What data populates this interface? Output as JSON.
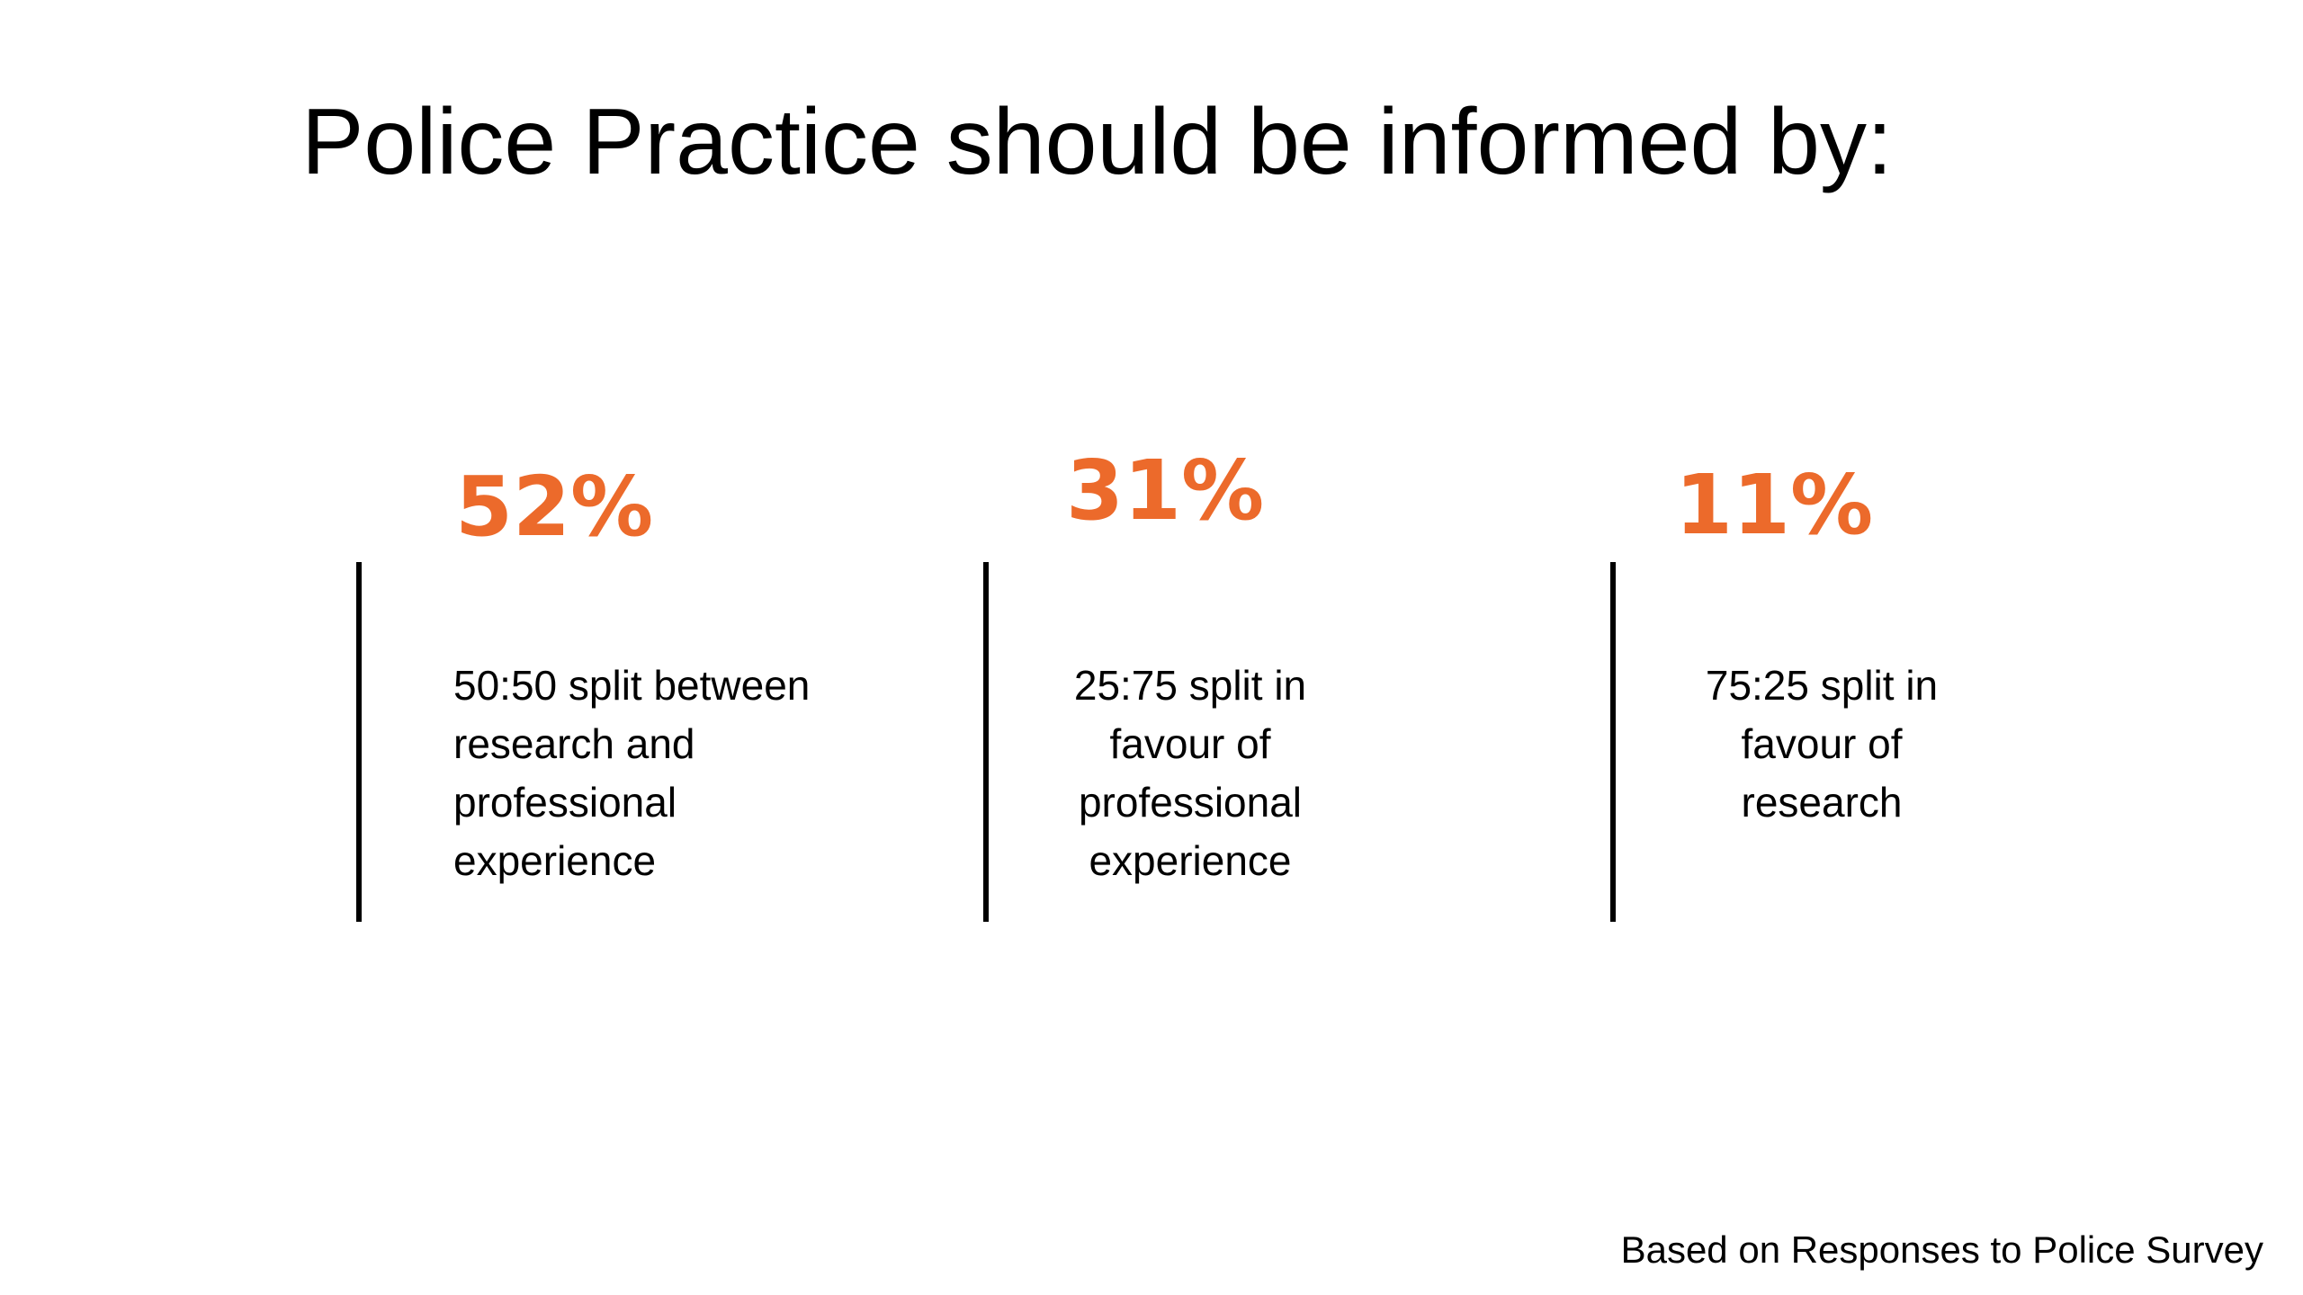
{
  "slide": {
    "title": "Police Practice should be informed by:",
    "accent_color": "#EC6A2B",
    "stats": [
      {
        "value": "52%",
        "description": "50:50 split between research and professional experience"
      },
      {
        "value": "31%",
        "description": "25:75 split in favour of professional experience"
      },
      {
        "value": "11%",
        "description": "75:25 split in favour of research"
      }
    ],
    "footnote": "Based on Responses to Police Survey"
  }
}
